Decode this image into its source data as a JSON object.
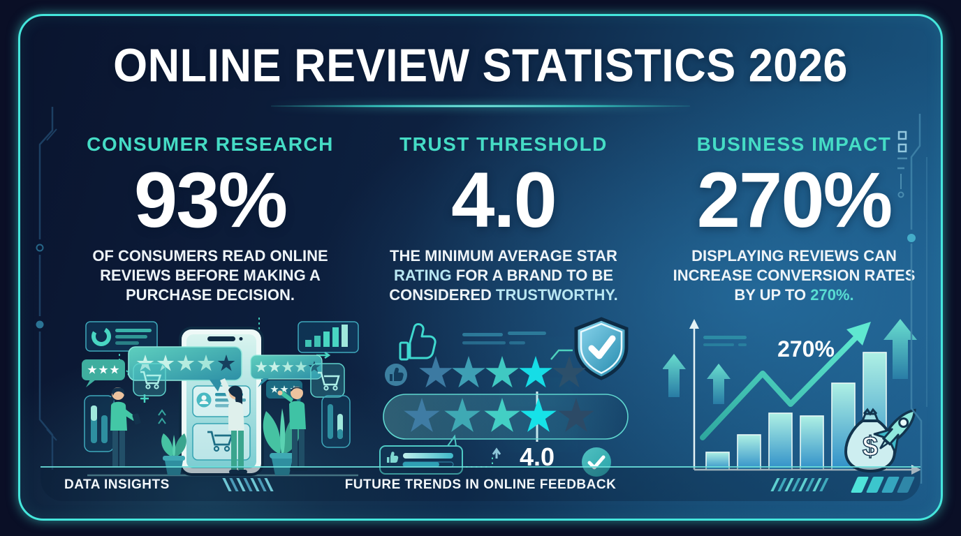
{
  "title": "ONLINE REVIEW STATISTICS 2026",
  "columns": [
    {
      "id": "consumer-research",
      "header": "CONSUMER RESEARCH",
      "stat": "93%",
      "description": {
        "part1": "OF CONSUMERS READ ONLINE REVIEWS BEFORE MAKING A PURCHASE DECISION."
      }
    },
    {
      "id": "trust-threshold",
      "header": "TRUST THRESHOLD",
      "stat": "4.0",
      "description": {
        "part1": "THE MINIMUM AVERAGE STAR ",
        "highlight1": "RATING",
        "part2": " FOR A BRAND TO BE CONSIDERED ",
        "highlight2": "TRUSTWORTHY."
      },
      "annotation": "4.0",
      "rating": {
        "stars_total": 5,
        "stars_highlighted": 4
      }
    },
    {
      "id": "business-impact",
      "header": "BUSINESS IMPACT",
      "stat": "270%",
      "description": {
        "part1": "DISPLAYING REVIEWS CAN INCREASE CONVERSION RATES BY UP TO ",
        "highlight1": "270%."
      },
      "annotation": "270%"
    }
  ],
  "footer": {
    "left_label": "DATA INSIGHTS",
    "center_label": "FUTURE TRENDS IN ONLINE FEEDBACK"
  },
  "colors": {
    "frame_accent": "#45E6DC",
    "header_teal": "#45DCC5",
    "highlight_cyan": "#B9E7F2",
    "highlight_teal": "#59DDD2",
    "bg_dark": "#0A142E",
    "bg_light": "#1C5A88",
    "star_bright": "#19DDE6",
    "star_dim": "#2C4F6A"
  },
  "icons": {
    "column1": [
      "smartphone-icon",
      "star-rating-bubble-icon",
      "three-star-bubble-icon",
      "shopping-cart-icon",
      "donut-chart-card-icon",
      "bar-chart-card-icon",
      "vertical-bars-widget-icon",
      "potted-plant-icon",
      "person-icon"
    ],
    "column2": [
      "thumbs-up-outline-icon",
      "thumbs-up-badge-icon",
      "shield-check-icon",
      "star-icon",
      "rating-pill-icon",
      "review-bubble-icon",
      "check-circle-icon"
    ],
    "column3": [
      "axis-icon",
      "growth-bars-icon",
      "trend-arrow-icon",
      "up-arrow-icon",
      "money-bag-icon",
      "rocket-icon"
    ]
  },
  "chart_data": {
    "type": "bar",
    "note": "decorative growth chart in Business Impact illustration (no axis labels shown)",
    "values_relative": [
      0.15,
      0.3,
      0.48,
      0.46,
      0.74,
      1.0
    ],
    "annotation": "270%",
    "trend": "rising zigzag arrow to upper right",
    "grid": false,
    "legend": false
  }
}
